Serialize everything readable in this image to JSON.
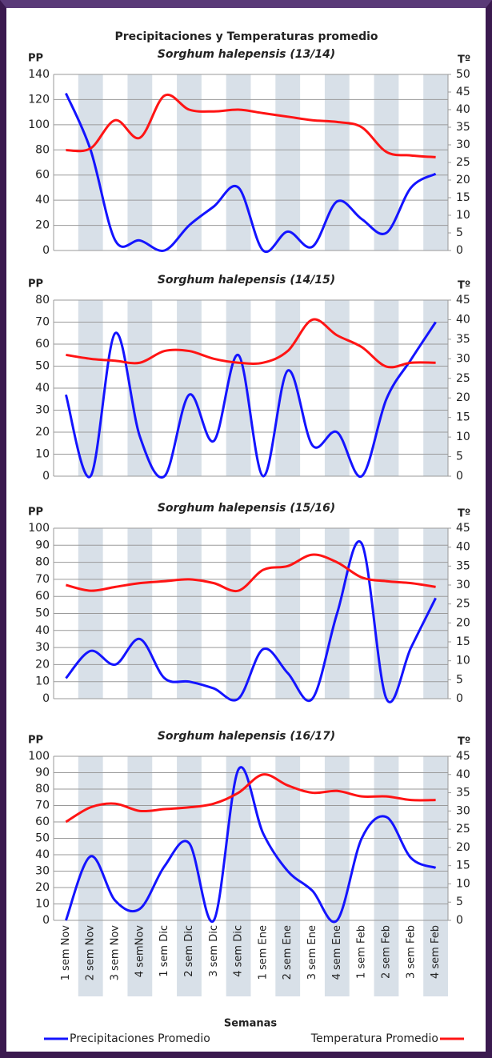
{
  "chart_data": [
    {
      "type": "line",
      "title": "Precipitaciones y Temperaturas promedio",
      "subtitle": "Sorghum halepensis (13/14)",
      "y_label": "PP",
      "y2_label": "Tº",
      "ylim": [
        0,
        140
      ],
      "yticks": [
        0,
        20,
        40,
        60,
        80,
        100,
        120,
        140
      ],
      "y2lim": [
        0,
        50
      ],
      "y2ticks": [
        0,
        5,
        10,
        15,
        20,
        25,
        30,
        35,
        40,
        45,
        50
      ],
      "series": [
        {
          "color": "#1414ff",
          "values": [
            125,
            80,
            8,
            8,
            0,
            20,
            35,
            50,
            0,
            15,
            3,
            39,
            25,
            14,
            50,
            61
          ]
        },
        {
          "color": "#ff1414",
          "axis": "y2",
          "values": [
            28.5,
            29,
            37,
            32,
            44,
            40,
            39.5,
            40,
            39,
            38,
            37,
            36.5,
            35,
            28,
            27,
            26.5
          ]
        }
      ]
    },
    {
      "type": "line",
      "subtitle": "Sorghum halepensis (14/15)",
      "y_label": "PP",
      "y2_label": "Tº",
      "ylim": [
        0,
        80
      ],
      "yticks": [
        0,
        10,
        20,
        30,
        40,
        50,
        60,
        70,
        80
      ],
      "y2lim": [
        0,
        45
      ],
      "y2ticks": [
        0,
        5,
        10,
        15,
        20,
        25,
        30,
        35,
        40,
        45
      ],
      "series": [
        {
          "color": "#1414ff",
          "values": [
            37,
            0,
            65,
            18,
            0,
            37,
            16,
            55,
            0,
            48,
            14,
            20,
            0,
            35,
            53,
            70
          ]
        },
        {
          "color": "#ff1414",
          "axis": "y2",
          "values": [
            31,
            30,
            29.5,
            29,
            32,
            32,
            30,
            29,
            29,
            32,
            40,
            36,
            33,
            28,
            29,
            29
          ]
        }
      ]
    },
    {
      "type": "line",
      "subtitle": "Sorghum halepensis (15/16)",
      "y_label": "PP",
      "y2_label": "Tº",
      "ylim": [
        0,
        100
      ],
      "yticks": [
        0,
        10,
        20,
        30,
        40,
        50,
        60,
        70,
        80,
        90,
        100
      ],
      "y2lim": [
        0,
        45
      ],
      "y2ticks": [
        0,
        5,
        10,
        15,
        20,
        25,
        30,
        35,
        40,
        45
      ],
      "series": [
        {
          "color": "#1414ff",
          "values": [
            12,
            28,
            20,
            35,
            12,
            10,
            6,
            0,
            29,
            15,
            0,
            50,
            91,
            0,
            30,
            59
          ]
        },
        {
          "color": "#ff1414",
          "axis": "y2",
          "values": [
            30,
            28.5,
            29.5,
            30.5,
            31,
            31.5,
            30.5,
            28.5,
            34,
            35,
            38,
            36,
            32,
            31,
            30.5,
            29.5
          ]
        }
      ]
    },
    {
      "type": "line",
      "subtitle": "Sorghum halepensis (16/17)",
      "y_label": "PP",
      "y2_label": "Tº",
      "x_label": "Semanas",
      "categories": [
        "1 sem Nov",
        "2 sem Nov",
        "3 sem Nov",
        "4 semNov",
        "1 sem Dic",
        "2 sem Dic",
        "3 sem Dic",
        "4 sem Dic",
        "1 sem Ene",
        "2 sem Ene",
        "3 sem Ene",
        "4 sem Ene",
        "1 sem Feb",
        "2 sem Feb",
        "3 sem Feb",
        "4 sem Feb"
      ],
      "ylim": [
        0,
        100
      ],
      "yticks": [
        0,
        10,
        20,
        30,
        40,
        50,
        60,
        70,
        80,
        90,
        100
      ],
      "y2lim": [
        0,
        45
      ],
      "y2ticks": [
        0,
        5,
        10,
        15,
        20,
        25,
        30,
        35,
        40,
        45
      ],
      "series": [
        {
          "name": "Precipitaciones Promedio",
          "color": "#1414ff",
          "values": [
            0,
            39,
            12,
            7,
            33,
            47,
            0,
            92,
            53,
            30,
            18,
            0,
            50,
            63,
            38,
            32
          ]
        },
        {
          "name": "Temperatura Promedio",
          "color": "#ff1414",
          "axis": "y2",
          "values": [
            27,
            31,
            32,
            30,
            30.5,
            31,
            32,
            35,
            40,
            37,
            35,
            35.5,
            34,
            34,
            33,
            33
          ]
        }
      ]
    }
  ]
}
